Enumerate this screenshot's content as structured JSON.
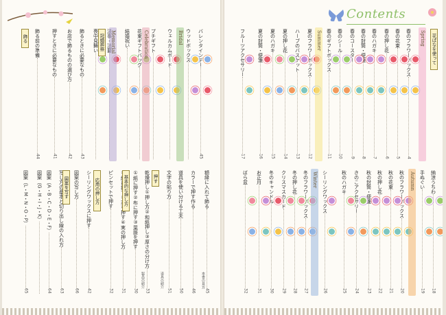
{
  "header": {
    "title": "Contents"
  },
  "colors": {
    "bridal": "#9fc98a",
    "celebration": "#e8a5b5",
    "memorial": "#b7a7d4",
    "spring": "#f2a9c8",
    "summer": "#f6e58a",
    "autumn": "#f3b56d",
    "winter": "#9ab8df",
    "tag_border": "#9a8a3a",
    "tag_fill": "#fbf3c8"
  },
  "left_top_columns": [
    {
      "text": "バレンタインデー",
      "page": "45"
    },
    {
      "text": "ウッドボックス",
      "page": ""
    },
    {
      "text": "ウェルカムボード",
      "page": ""
    },
    {
      "text": "プチギフト",
      "page": ""
    },
    {
      "text": "花束ギフトバッグ",
      "page": ""
    },
    {
      "text": "結婚祝い",
      "page": ""
    },
    {
      "text": "法事・法要",
      "page": ""
    },
    {
      "text": "喪中見舞い",
      "page": ""
    },
    {
      "text": "飾るときに必要なもの",
      "page": "43"
    },
    {
      "text": "お店で飾るものの選び方",
      "page": "42"
    },
    {
      "text": "押すときに必要なもの",
      "page": "41"
    },
    {
      "text": "飾る前の準備",
      "page": "44"
    }
  ],
  "left_top_pages": [
    "40",
    "39",
    "38",
    "37",
    "36",
    "35",
    "34"
  ],
  "left_bands": [
    {
      "label": "Bridal",
      "color": "#9fc98a"
    },
    {
      "label": "Celebration",
      "color": "#e8a5b5"
    },
    {
      "label": "Memorial",
      "color": "#b7a7d4"
    }
  ],
  "left_tags": [
    {
      "label": "飾る"
    },
    {
      "label": "冠婚葬祭"
    }
  ],
  "left_bottom_columns": [
    {
      "text": "額縁に入れて飾る",
      "page": "45"
    },
    {
      "text": "カラーで押す作る",
      "page": "46"
    },
    {
      "text": "道具を使い分ける工夫",
      "page": "50"
    },
    {
      "text": "文字の貼り方",
      "page": "51"
    },
    {
      "text": "乾燥押し①押し方②和紙押し③厚さの分け方",
      "page": "33"
    },
    {
      "text": "①紙に押す②布に押す③葉脈を押す",
      "page": "30"
    },
    {
      "text": "②紙に押す③茎を押す④実の押し方",
      "page": "31"
    },
    {
      "text": "ピンセットで押す",
      "page": "32"
    },
    {
      "text": "シーリングワックスに押す",
      "page": "42"
    },
    {
      "text": "図案の写し方",
      "page": "66"
    },
    {
      "text": "写し方の基本と切り出し線の入れ方",
      "page": "63"
    },
    {
      "text": "図案（A・B・C・D・E・F）",
      "page": "64"
    },
    {
      "text": "図案（G・H・I・J・K）",
      "page": ""
    },
    {
      "text": "図案（L・M・N・O・P）",
      "page": "65"
    }
  ],
  "left_bottom_tags": [
    {
      "label": "押す"
    },
    {
      "label": "基本的な押し方"
    },
    {
      "label": "応用の押し方"
    },
    {
      "label": "図案を写す"
    }
  ],
  "left_footer": [
    "製品の紹介",
    "道具の紹介",
    "本書の見方"
  ],
  "right_top_columns": [
    {
      "text": "春のフラワーボックス",
      "page": "4"
    },
    {
      "text": "春の花束",
      "page": "5"
    },
    {
      "text": "春の押し花",
      "page": "6"
    },
    {
      "text": "春のハガキ",
      "page": "7"
    },
    {
      "text": "春の封筒・便箋",
      "page": "8"
    },
    {
      "text": "春のコースター",
      "page": "9"
    },
    {
      "text": "春のシール",
      "page": "10"
    },
    {
      "text": "春のギフトボックス",
      "page": "11"
    },
    {
      "text": "夏のフラワーボックス",
      "page": "12"
    },
    {
      "text": "ハーブのバスケット",
      "page": "13"
    },
    {
      "text": "夏の押し花",
      "page": "14"
    },
    {
      "text": "夏のハガキ",
      "page": "15"
    },
    {
      "text": "夏の封筒・便箋",
      "page": "16"
    },
    {
      "text": "フルーツアクセサリー",
      "page": "17"
    }
  ],
  "right_top_tags": [
    {
      "label": "花ばなを使って"
    }
  ],
  "right_bands": [
    {
      "label": "Spring",
      "color": "#f2a9c8"
    },
    {
      "label": "Summer",
      "color": "#f6e58a"
    },
    {
      "label": "Autumn",
      "color": "#f3b56d"
    },
    {
      "label": "Winter",
      "color": "#9ab8df"
    }
  ],
  "right_bottom_columns": [
    {
      "text": "納涼うちわ",
      "page": "18"
    },
    {
      "text": "手ぬぐい",
      "page": "19"
    },
    {
      "text": "秋のフラワーボックス",
      "page": "20"
    },
    {
      "text": "秋の花束",
      "page": "21"
    },
    {
      "text": "秋の押し花",
      "page": "22"
    },
    {
      "text": "秋の封筒・便箋",
      "page": "23"
    },
    {
      "text": "きのこアクセサリー",
      "page": "24"
    },
    {
      "text": "秋のハガキ",
      "page": "25"
    },
    {
      "text": "シーリングワックス",
      "page": "26"
    },
    {
      "text": "冬のフラワーボックス",
      "page": "27"
    },
    {
      "text": "冬の押し花",
      "page": "28"
    },
    {
      "text": "クリスマスカード",
      "page": "29"
    },
    {
      "text": "冬のキャンドル",
      "page": "30"
    },
    {
      "text": "お正月",
      "page": "31"
    },
    {
      "text": "ばら盆",
      "page": "32"
    }
  ]
}
